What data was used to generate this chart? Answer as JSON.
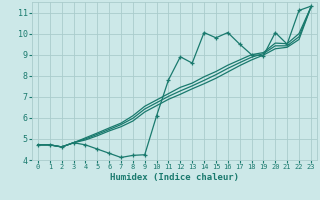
{
  "title": "",
  "xlabel": "Humidex (Indice chaleur)",
  "bg_color": "#cce8e8",
  "grid_color": "#aacccc",
  "line_color": "#1a7a6e",
  "xlim": [
    -0.5,
    23.5
  ],
  "ylim": [
    4,
    11.5
  ],
  "xticks": [
    0,
    1,
    2,
    3,
    4,
    5,
    6,
    7,
    8,
    9,
    10,
    11,
    12,
    13,
    14,
    15,
    16,
    17,
    18,
    19,
    20,
    21,
    22,
    23
  ],
  "yticks": [
    4,
    5,
    6,
    7,
    8,
    9,
    10,
    11
  ],
  "series": [
    [
      4.72,
      4.72,
      4.62,
      4.82,
      4.72,
      4.52,
      4.32,
      4.12,
      4.22,
      4.25,
      6.1,
      7.8,
      8.9,
      8.6,
      10.05,
      9.8,
      10.05,
      9.5,
      9.0,
      8.95,
      10.05,
      9.5,
      11.1,
      11.3
    ],
    [
      4.72,
      4.72,
      4.62,
      4.82,
      5.05,
      5.28,
      5.52,
      5.75,
      6.1,
      6.55,
      6.85,
      7.15,
      7.45,
      7.65,
      7.95,
      8.2,
      8.5,
      8.75,
      9.0,
      9.1,
      9.55,
      9.52,
      10.0,
      11.25
    ],
    [
      4.72,
      4.72,
      4.62,
      4.82,
      5.0,
      5.22,
      5.45,
      5.68,
      5.98,
      6.42,
      6.72,
      7.02,
      7.28,
      7.52,
      7.78,
      8.05,
      8.35,
      8.62,
      8.88,
      9.05,
      9.42,
      9.42,
      9.85,
      11.25
    ],
    [
      4.72,
      4.72,
      4.62,
      4.82,
      4.95,
      5.15,
      5.38,
      5.58,
      5.85,
      6.28,
      6.58,
      6.88,
      7.12,
      7.38,
      7.62,
      7.88,
      8.18,
      8.48,
      8.75,
      8.98,
      9.28,
      9.35,
      9.72,
      11.25
    ]
  ]
}
